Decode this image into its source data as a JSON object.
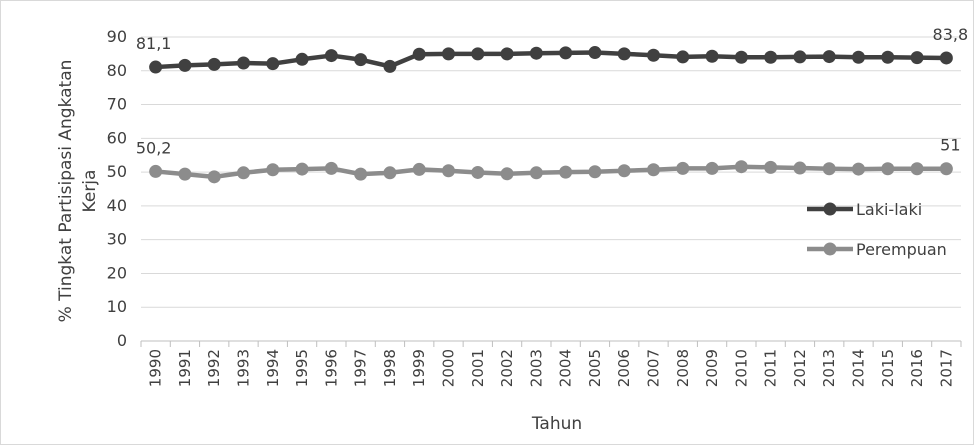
{
  "chart_data": {
    "type": "line",
    "title": "",
    "xlabel": "Tahun",
    "ylabel": "% Tingkat Partisipasi Angkatan Kerja",
    "ylim": [
      0,
      90
    ],
    "yticks": [
      0,
      10,
      20,
      30,
      40,
      50,
      60,
      70,
      80,
      90
    ],
    "grid": true,
    "legend_position": "right",
    "categories": [
      "1990",
      "1991",
      "1992",
      "1993",
      "1994",
      "1995",
      "1996",
      "1997",
      "1998",
      "1999",
      "2000",
      "2001",
      "2002",
      "2003",
      "2004",
      "2005",
      "2006",
      "2007",
      "2008",
      "2009",
      "2010",
      "2011",
      "2012",
      "2013",
      "2014",
      "2015",
      "2016",
      "2017"
    ],
    "series": [
      {
        "name": "Laki-laki",
        "color": "#404040",
        "values": [
          81.1,
          81.6,
          81.9,
          82.3,
          82.1,
          83.4,
          84.5,
          83.3,
          81.3,
          84.9,
          85.0,
          85.0,
          85.0,
          85.2,
          85.3,
          85.4,
          85.0,
          84.6,
          84.1,
          84.3,
          84.0,
          84.0,
          84.1,
          84.2,
          84.0,
          84.0,
          83.9,
          83.8
        ],
        "labels": [
          {
            "index": 0,
            "text": "81,1"
          },
          {
            "index": 27,
            "text": "83,8"
          }
        ]
      },
      {
        "name": "Perempuan",
        "color": "#8c8c8c",
        "values": [
          50.2,
          49.4,
          48.6,
          49.8,
          50.7,
          50.9,
          51.1,
          49.4,
          49.8,
          50.8,
          50.4,
          49.9,
          49.5,
          49.8,
          50.0,
          50.1,
          50.4,
          50.7,
          51.1,
          51.1,
          51.6,
          51.4,
          51.2,
          51.0,
          50.9,
          51.0,
          51.0,
          51.0
        ],
        "labels": [
          {
            "index": 0,
            "text": "50,2"
          },
          {
            "index": 27,
            "text": "51"
          }
        ]
      }
    ]
  }
}
